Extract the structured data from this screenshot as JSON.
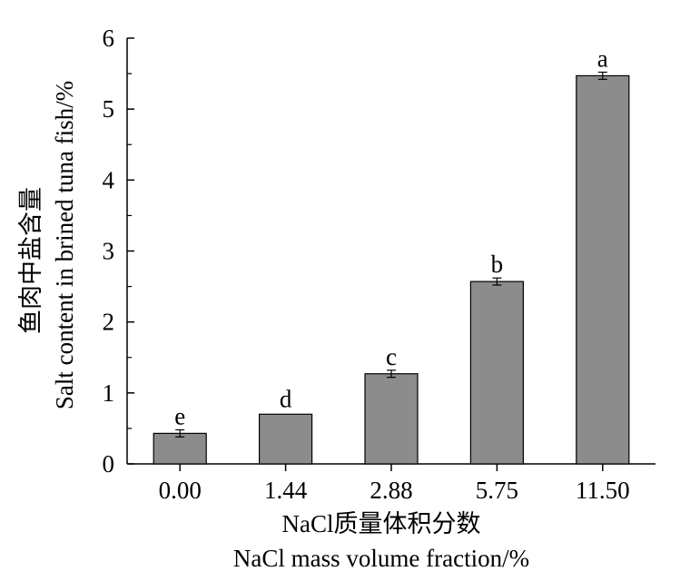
{
  "chart_data": {
    "type": "bar",
    "categories": [
      "0.00",
      "1.44",
      "2.88",
      "5.75",
      "11.50"
    ],
    "values": [
      0.43,
      0.7,
      1.27,
      2.57,
      5.47
    ],
    "errors": [
      0.05,
      0.0,
      0.05,
      0.05,
      0.05
    ],
    "significance_letters": [
      "e",
      "d",
      "c",
      "b",
      "a"
    ],
    "ylim": [
      0,
      6
    ],
    "yticks": [
      "0",
      "1",
      "2",
      "3",
      "4",
      "5",
      "6"
    ],
    "xlabel_cn": "NaCl质量体积分数",
    "xlabel_en": "NaCl mass volume fraction/%",
    "ylabel_cn": "鱼肉中盐含量",
    "ylabel_en": "Salt content in brined tuna fish/%",
    "bar_color": "#8c8c8c",
    "bar_stroke": "#000000",
    "grid": false,
    "legend": "none"
  }
}
